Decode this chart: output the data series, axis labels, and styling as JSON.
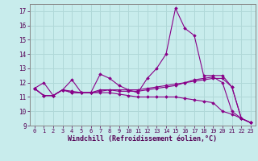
{
  "background_color": "#c8ecec",
  "grid_color": "#b0d8d8",
  "line_color": "#880088",
  "x_values": [
    0,
    1,
    2,
    3,
    4,
    5,
    6,
    7,
    8,
    9,
    10,
    11,
    12,
    13,
    14,
    15,
    16,
    17,
    18,
    19,
    20,
    21,
    22,
    23
  ],
  "series": [
    [
      11.6,
      12.0,
      11.1,
      11.5,
      12.2,
      11.3,
      11.3,
      12.6,
      12.3,
      11.8,
      11.5,
      11.3,
      12.3,
      13.0,
      14.0,
      17.2,
      15.8,
      15.3,
      12.5,
      12.5,
      12.5,
      11.7,
      9.5,
      9.2
    ],
    [
      11.6,
      11.1,
      11.1,
      11.5,
      11.4,
      11.3,
      11.3,
      11.4,
      11.5,
      11.5,
      11.5,
      11.5,
      11.6,
      11.7,
      11.8,
      11.9,
      12.0,
      12.1,
      12.2,
      12.3,
      12.3,
      11.7,
      9.5,
      9.2
    ],
    [
      11.6,
      11.1,
      11.1,
      11.5,
      11.3,
      11.3,
      11.3,
      11.5,
      11.5,
      11.4,
      11.4,
      11.4,
      11.5,
      11.6,
      11.7,
      11.8,
      12.0,
      12.2,
      12.3,
      12.4,
      12.0,
      10.0,
      9.5,
      9.2
    ],
    [
      11.6,
      11.1,
      11.1,
      11.5,
      11.3,
      11.3,
      11.3,
      11.3,
      11.3,
      11.2,
      11.1,
      11.0,
      11.0,
      11.0,
      11.0,
      11.0,
      10.9,
      10.8,
      10.7,
      10.6,
      10.0,
      9.8,
      9.5,
      9.2
    ]
  ],
  "ylim": [
    9,
    17.5
  ],
  "xlim": [
    -0.5,
    23.5
  ],
  "yticks": [
    9,
    10,
    11,
    12,
    13,
    14,
    15,
    16,
    17
  ],
  "xticks": [
    0,
    1,
    2,
    3,
    4,
    5,
    6,
    7,
    8,
    9,
    10,
    11,
    12,
    13,
    14,
    15,
    16,
    17,
    18,
    19,
    20,
    21,
    22,
    23
  ],
  "xlabel": "Windchill (Refroidissement éolien,°C)"
}
